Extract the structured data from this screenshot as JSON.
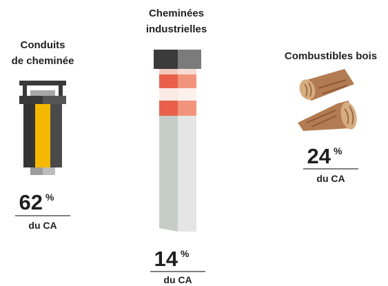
{
  "items": [
    {
      "label_lines": [
        "Conduits",
        "de cheminée"
      ],
      "value": "62",
      "unit": "%",
      "caption": "du CA"
    },
    {
      "label_lines": [
        "Cheminées",
        "industrielles"
      ],
      "value": "14",
      "unit": "%",
      "caption": "du CA"
    },
    {
      "label_lines": [
        "Combustibles bois"
      ],
      "value": "24",
      "unit": "%",
      "caption": "du CA"
    }
  ]
}
